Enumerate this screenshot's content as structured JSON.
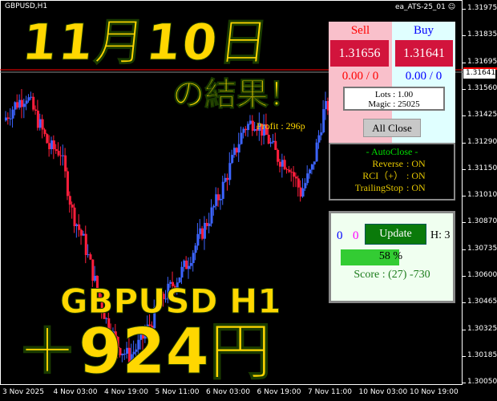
{
  "chart": {
    "symbol_label": "GBPUSD,H1",
    "ea_label": "ea_ATS-25_01",
    "current_price": "1.31641",
    "price_axis": [
      "1.31975",
      "1.31835",
      "1.31695",
      "1.31560",
      "1.31425",
      "1.31290",
      "1.31150",
      "1.31010",
      "1.30870",
      "1.30735",
      "1.30600",
      "1.30465",
      "1.30325",
      "1.30185",
      "1.30050"
    ],
    "time_axis": [
      "3 Nov 2025",
      "4 Nov 03:00",
      "4 Nov 19:00",
      "5 Nov 11:00",
      "6 Nov 03:00",
      "6 Nov 19:00",
      "7 Nov 11:00",
      "10 Nov 03:00",
      "10 Nov 19:00"
    ],
    "closes": [
      1.314,
      1.3148,
      1.3153,
      1.314,
      1.3126,
      1.3124,
      1.3093,
      1.3078,
      1.3057,
      1.3037,
      1.3024,
      1.3018,
      1.3026,
      1.3037,
      1.3049,
      1.3057,
      1.3066,
      1.3078,
      1.309,
      1.3103,
      1.3119,
      1.3136,
      1.314,
      1.3132,
      1.3121,
      1.3117,
      1.3103,
      1.3115,
      1.3144,
      1.3153
    ],
    "colors": {
      "up": "#3c64ff",
      "down": "#ff1e3c",
      "bid_line": "#ff0000"
    }
  },
  "overlay": {
    "date": "11月10日",
    "result": "の結果！",
    "pair": "GBPUSD H1",
    "profit": "＋924円"
  },
  "trade_panel": {
    "sell_label": "Sell",
    "buy_label": "Buy",
    "sell_price": "1.31656",
    "buy_price": "1.31641",
    "sell_pos": "0.00 / 0",
    "buy_pos": "0.00 / 0",
    "lots": "Lots   : 1.00",
    "magic": "Magic : 25025",
    "profit_ghost": "Profit : 296p",
    "all_close": "All Close"
  },
  "autoclose": {
    "title": "- AutoClose -",
    "rows": [
      {
        "k": "Reverse",
        "v": ": ON"
      },
      {
        "k": "RCI（+）",
        "v": ": ON"
      },
      {
        "k": "TrailingStop",
        "v": ": ON"
      }
    ]
  },
  "score_panel": {
    "count_blue": "0",
    "count_magenta": "0",
    "update": "Update",
    "h": "H: 3",
    "progress": 58,
    "progress_label": "58 %",
    "score": "Score : (27) -730"
  }
}
